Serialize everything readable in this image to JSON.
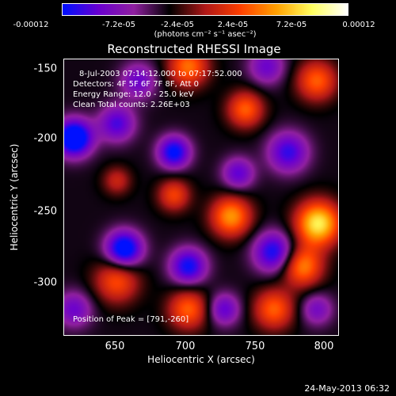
{
  "colorbar": {
    "ticks": [
      "-0.00012",
      "-7.2e-05",
      "-2.4e-05",
      "2.4e-05",
      "7.2e-05",
      "0.00012"
    ],
    "unit_label": "(photons cm⁻² s⁻¹ asec⁻²)",
    "range": [
      -0.00012,
      0.00012
    ],
    "colormap": [
      "#0010ff",
      "#6a00d0",
      "#9020a0",
      "#000000",
      "#b01818",
      "#ff4000",
      "#ffa000",
      "#ffff60",
      "#ffffff"
    ]
  },
  "chart_data": {
    "type": "heatmap",
    "title": "Reconstructed RHESSI Image",
    "xlabel": "Heliocentric X (arcsec)",
    "ylabel": "Heliocentric Y (arcsec)",
    "xlim": [
      613,
      805
    ],
    "ylim": [
      -338,
      -145
    ],
    "x_ticks": [
      "650",
      "700",
      "750",
      "800"
    ],
    "y_ticks": [
      "-150",
      "-200",
      "-250",
      "-300"
    ],
    "annotations": {
      "time": "8-Jul-2003 07:14:12.000 to 07:17:52.000",
      "detectors": "Detectors: 4F 5F 6F 7F 8F, Att 0",
      "energy": "Energy Range: 12.0 - 25.0 keV",
      "clean": "Clean     Total counts: 2.26E+03",
      "peak": "Position of Peak = [791,-260]"
    },
    "peak": [
      791,
      -260
    ],
    "blobs": [
      {
        "x": 791,
        "y": -260,
        "v": 1.0,
        "s": 11
      },
      {
        "x": 780,
        "y": -290,
        "v": 0.7,
        "s": 10
      },
      {
        "x": 730,
        "y": -255,
        "v": 0.75,
        "s": 10
      },
      {
        "x": 740,
        "y": -180,
        "v": 0.6,
        "s": 9
      },
      {
        "x": 700,
        "y": -150,
        "v": 0.65,
        "s": 10
      },
      {
        "x": 790,
        "y": -160,
        "v": 0.6,
        "s": 10
      },
      {
        "x": 650,
        "y": -300,
        "v": 0.55,
        "s": 11
      },
      {
        "x": 700,
        "y": -320,
        "v": 0.6,
        "s": 10
      },
      {
        "x": 760,
        "y": -320,
        "v": 0.6,
        "s": 10
      },
      {
        "x": 690,
        "y": -240,
        "v": 0.5,
        "s": 8
      },
      {
        "x": 650,
        "y": -230,
        "v": 0.35,
        "s": 7
      },
      {
        "x": 620,
        "y": -200,
        "v": -1.0,
        "s": 9
      },
      {
        "x": 655,
        "y": -278,
        "v": -0.9,
        "s": 9
      },
      {
        "x": 690,
        "y": -210,
        "v": -0.75,
        "s": 8
      },
      {
        "x": 700,
        "y": -290,
        "v": -0.7,
        "s": 9
      },
      {
        "x": 760,
        "y": -280,
        "v": -0.7,
        "s": 10
      },
      {
        "x": 770,
        "y": -210,
        "v": -0.6,
        "s": 10
      },
      {
        "x": 650,
        "y": -190,
        "v": -0.55,
        "s": 9
      },
      {
        "x": 725,
        "y": -320,
        "v": -0.5,
        "s": 8
      },
      {
        "x": 735,
        "y": -225,
        "v": -0.5,
        "s": 8
      },
      {
        "x": 620,
        "y": -320,
        "v": -0.45,
        "s": 9
      },
      {
        "x": 790,
        "y": -320,
        "v": -0.4,
        "s": 8
      },
      {
        "x": 755,
        "y": -150,
        "v": -0.45,
        "s": 9
      },
      {
        "x": 665,
        "y": -160,
        "v": -0.45,
        "s": 9
      }
    ]
  },
  "footer": {
    "timestamp": "24-May-2013 06:32"
  }
}
